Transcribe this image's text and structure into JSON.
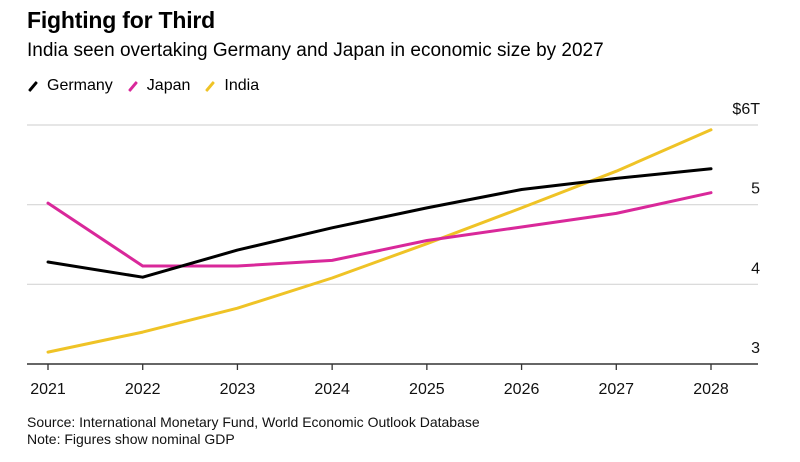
{
  "chart_data": {
    "type": "line",
    "title": "Fighting for Third",
    "subtitle": "India seen overtaking Germany and Japan in economic size by 2027",
    "xlabel": "",
    "ylabel": "",
    "x": [
      "2021",
      "2022",
      "2023",
      "2024",
      "2025",
      "2026",
      "2027",
      "2028"
    ],
    "y_ticks": [
      {
        "value": 3,
        "label": "3"
      },
      {
        "value": 4,
        "label": "4"
      },
      {
        "value": 5,
        "label": "5"
      },
      {
        "value": 6,
        "label": "$6T"
      }
    ],
    "ylim": [
      3,
      6
    ],
    "grid": true,
    "y_axis_side": "right",
    "legend_position": "top-left",
    "series": [
      {
        "name": "Germany",
        "color": "#000000",
        "values": [
          4.28,
          4.09,
          4.43,
          4.71,
          4.96,
          5.19,
          5.33,
          5.45
        ]
      },
      {
        "name": "Japan",
        "color": "#d9289a",
        "values": [
          5.02,
          4.23,
          4.23,
          4.3,
          4.55,
          4.72,
          4.89,
          5.15
        ]
      },
      {
        "name": "India",
        "color": "#efc326",
        "values": [
          3.15,
          3.4,
          3.7,
          4.08,
          4.51,
          4.96,
          5.42,
          5.94
        ]
      }
    ],
    "source": "Source: International Monetary Fund, World Economic Outlook Database",
    "note": "Note: Figures show nominal GDP"
  }
}
